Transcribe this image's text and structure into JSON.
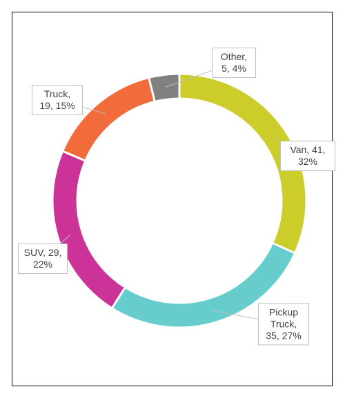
{
  "chart_data": {
    "type": "donut",
    "categories": [
      "Van",
      "Pickup Truck",
      "SUV",
      "Truck",
      "Other"
    ],
    "values": [
      41,
      35,
      29,
      19,
      5
    ],
    "value_labels": [
      "Van, 41, 32%",
      "Pickup Truck, 35, 27%",
      "SUV, 29, 22%",
      "Truck, 19, 15%",
      "Other, 5, 4%"
    ],
    "colors": [
      "#cccc2a",
      "#66cccc",
      "#cc3399",
      "#f26b3a",
      "#808080"
    ]
  }
}
